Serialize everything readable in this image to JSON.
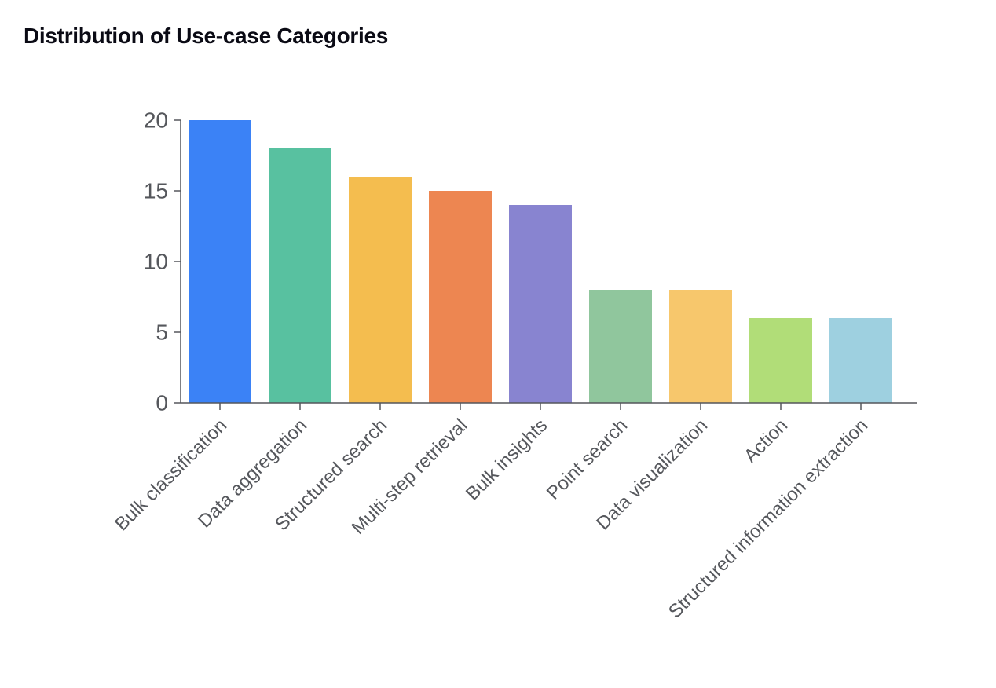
{
  "chart_data": {
    "type": "bar",
    "title": "Distribution of Use-case Categories",
    "xlabel": "",
    "ylabel": "",
    "ylim": [
      0,
      20
    ],
    "yticks": [
      0,
      5,
      10,
      15,
      20
    ],
    "categories": [
      "Bulk classification",
      "Data aggregation",
      "Structured search",
      "Multi-step retrieval",
      "Bulk insights",
      "Point search",
      "Data visualization",
      "Action",
      "Structured information extraction"
    ],
    "values": [
      20,
      18,
      16,
      15,
      14,
      8,
      8,
      6,
      6
    ],
    "colors": [
      "#3b82f6",
      "#58c1a0",
      "#f4bd4f",
      "#ed8651",
      "#8884d0",
      "#90c69d",
      "#f7c76c",
      "#b1dd78",
      "#9ed0e0"
    ],
    "grid": false,
    "legend": "none"
  }
}
